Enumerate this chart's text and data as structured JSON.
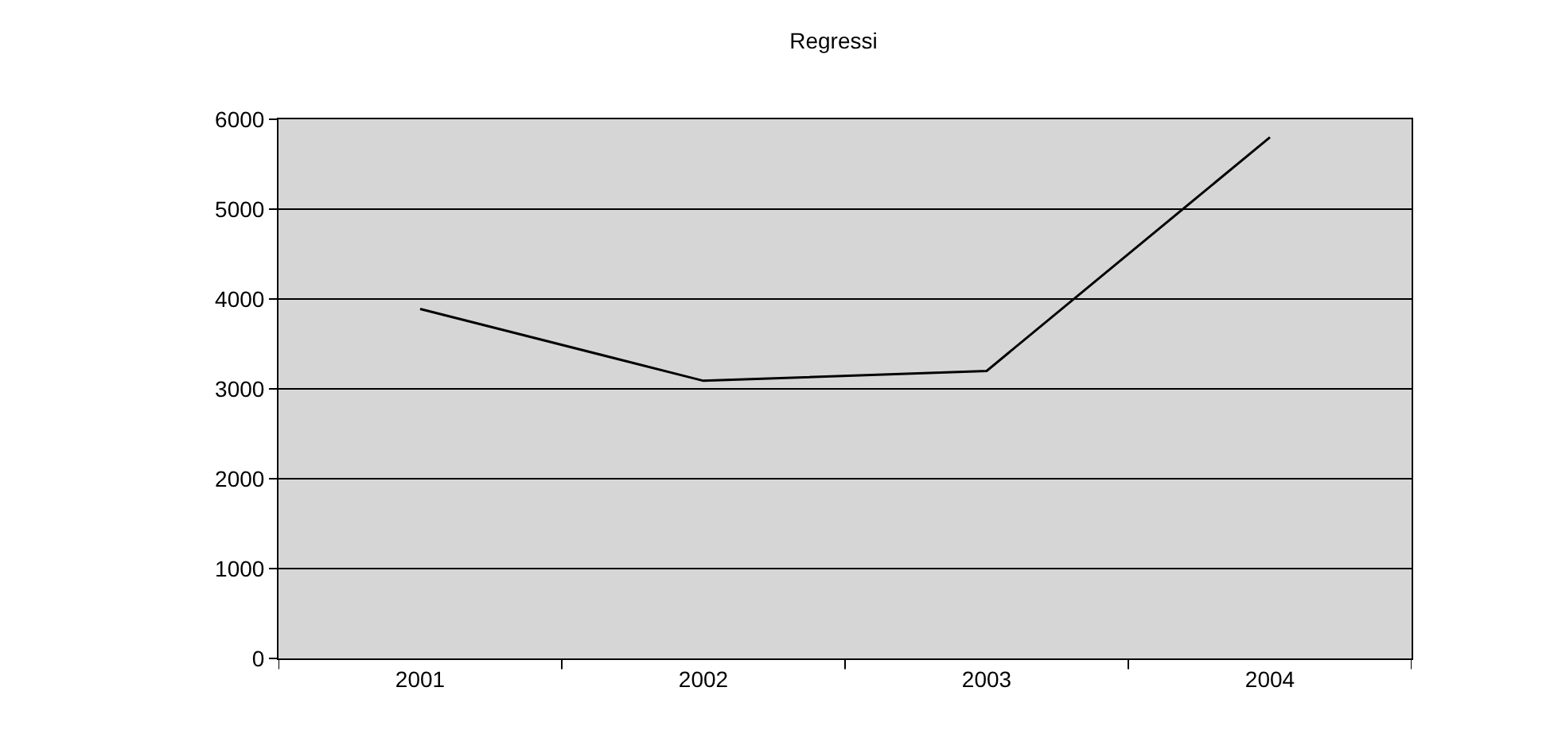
{
  "chart_data": {
    "type": "line",
    "title": "Regressi",
    "categories": [
      "2001",
      "2002",
      "2003",
      "2004"
    ],
    "series": [
      {
        "color": "#000000",
        "values": [
          3890,
          3090,
          3200,
          5800
        ]
      }
    ],
    "ylim": [
      0,
      6000
    ],
    "yticks": [
      0,
      1000,
      2000,
      3000,
      4000,
      5000,
      6000
    ],
    "grid": "y",
    "marker": "none",
    "line_style": "solid"
  }
}
